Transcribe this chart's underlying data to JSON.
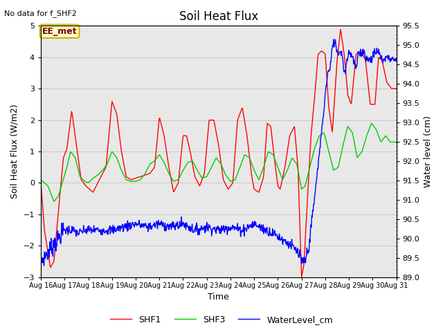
{
  "title": "Soil Heat Flux",
  "top_left_text": "No data for f_SHF2",
  "ylabel_left": "Soil Heat Flux (W/m2)",
  "ylabel_right": "Water level (cm)",
  "xlabel": "Time",
  "ylim_left": [
    -3.0,
    5.0
  ],
  "ylim_right": [
    89.0,
    95.5
  ],
  "x_start": 16,
  "x_end": 31,
  "x_ticks": [
    16,
    17,
    18,
    19,
    20,
    21,
    22,
    23,
    24,
    25,
    26,
    27,
    28,
    29,
    30,
    31
  ],
  "x_tick_labels": [
    "Aug 16",
    "Aug 17",
    "Aug 18",
    "Aug 19",
    "Aug 20",
    "Aug 21",
    "Aug 22",
    "Aug 23",
    "Aug 24",
    "Aug 25",
    "Aug 26",
    "Aug 27",
    "Aug 28",
    "Aug 29",
    "Aug 30",
    "Aug 31"
  ],
  "yticks_left": [
    -3.0,
    -2.0,
    -1.0,
    0.0,
    1.0,
    2.0,
    3.0,
    4.0,
    5.0
  ],
  "yticks_right": [
    89.0,
    89.5,
    90.0,
    90.5,
    91.0,
    91.5,
    92.0,
    92.5,
    93.0,
    93.5,
    94.0,
    94.5,
    95.0,
    95.5
  ],
  "shf1_color": "#ff0000",
  "shf3_color": "#00cc00",
  "water_color": "#0000ff",
  "grid_color": "#c8c8c8",
  "bg_color": "#e8e8e8",
  "ee_met_label": "EE_met",
  "ee_met_facecolor": "#ffffcc",
  "ee_met_edgecolor": "#c8b400",
  "ee_met_text_color": "#800000",
  "legend_labels": [
    "SHF1",
    "SHF3",
    "WaterLevel_cm"
  ],
  "figsize": [
    6.4,
    4.8
  ],
  "dpi": 100
}
